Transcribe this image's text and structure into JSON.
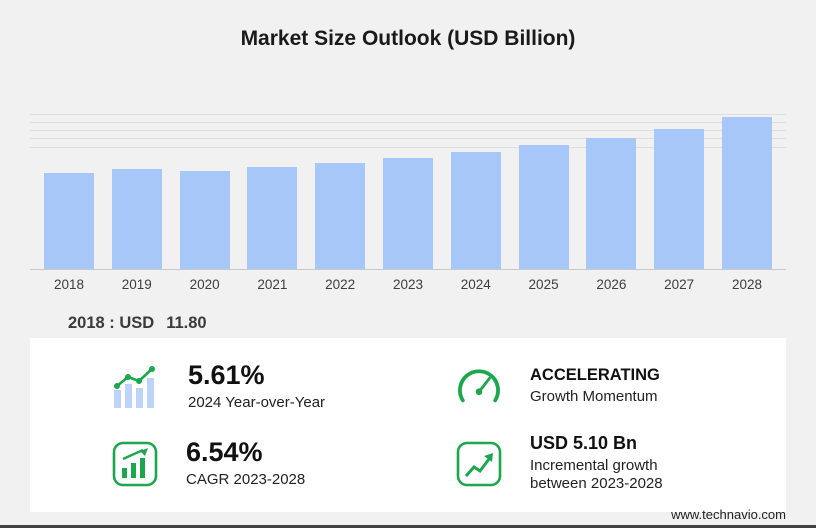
{
  "title": "Market Size Outlook (USD Billion)",
  "chart_data": {
    "type": "bar",
    "title": "Market Size Outlook (USD Billion)",
    "categories": [
      "2018",
      "2019",
      "2020",
      "2021",
      "2022",
      "2023",
      "2024",
      "2025",
      "2026",
      "2027",
      "2028"
    ],
    "values": [
      11.8,
      12.3,
      12.05,
      12.54,
      13.04,
      13.68,
      14.45,
      15.28,
      16.15,
      17.27,
      18.78
    ],
    "xlabel": "",
    "ylabel": "",
    "ylim": [
      0,
      19.5
    ],
    "gridlines": [
      15,
      16,
      17,
      18,
      19
    ],
    "bar_color": "#a7c7f8",
    "legend": "none",
    "grid": "partial-top"
  },
  "callout": {
    "label": "2018 : USD",
    "value": "11.80"
  },
  "stats": {
    "yoy": {
      "value": "5.61%",
      "label": "2024 Year-over-Year",
      "icon": "bar-trend-icon"
    },
    "momentum": {
      "value": "ACCELERATING",
      "label": "Growth Momentum",
      "icon": "speedometer-icon"
    },
    "cagr": {
      "value": "6.54%",
      "label": "CAGR 2023-2028",
      "icon": "bar-chart-box-icon"
    },
    "incremental": {
      "value": "USD 5.10 Bn",
      "label_line1": "Incremental growth",
      "label_line2": "between 2023-2028",
      "icon": "growth-line-box-icon"
    }
  },
  "footer": {
    "url": "www.technavio.com"
  },
  "colors": {
    "accent_green": "#1ca64e",
    "bar": "#a7c7f8",
    "background": "#f1f1f1",
    "panel": "#ffffff"
  }
}
